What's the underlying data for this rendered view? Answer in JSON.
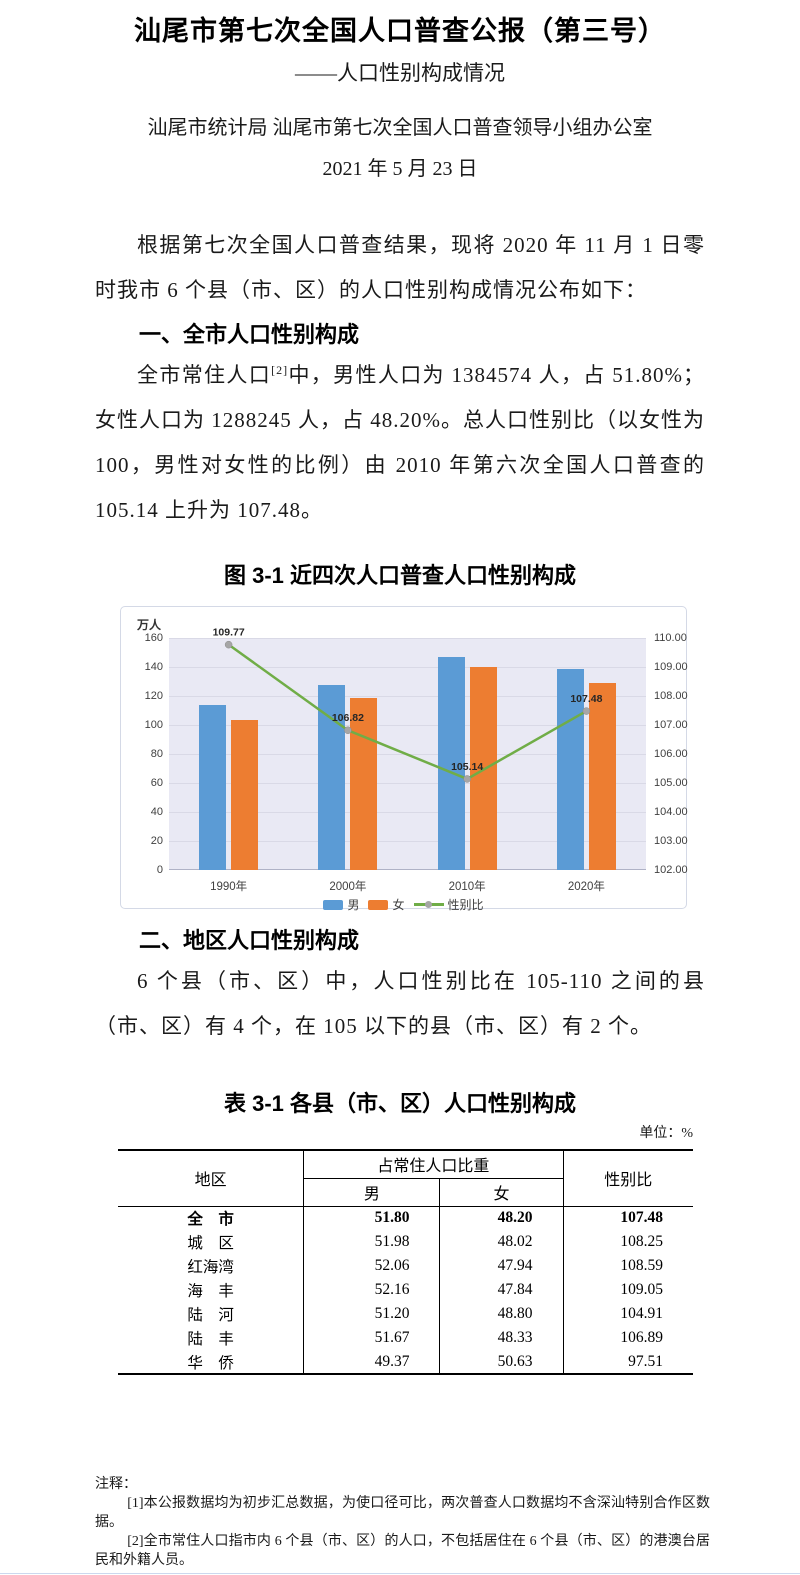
{
  "doc": {
    "title": "汕尾市第七次全国人口普查公报（第三号）",
    "subtitle": "——人口性别构成情况",
    "byline": "汕尾市统计局 汕尾市第七次全国人口普查领导小组办公室",
    "date": "2021 年 5 月 23 日",
    "intro": "根据第七次全国人口普查结果，现将 2020 年 11 月 1 日零时我市 6 个县（市、区）的人口性别构成情况公布如下：",
    "section1_heading": "一、全市人口性别构成",
    "para_sup_pre": "全市常住人口",
    "para_sup": "[2]",
    "para_sup_post": "中，男性人口为 1384574 人，占 51.80%；女性人口为 1288245 人，占 48.20%。总人口性别比（以女性为 100，男性对女性的比例）由 2010 年第六次全国人口普查的 105.14 上升为 107.48。",
    "section2_heading": "二、地区人口性别构成",
    "section2_para": "6 个县（市、区）中，人口性别比在 105-110 之间的县（市、区）有 4 个，在 105 以下的县（市、区）有 2 个。"
  },
  "chart_data": {
    "type": "bar",
    "title": "图 3-1  近四次人口普查人口性别构成",
    "unit_label": "万人",
    "categories": [
      "1990年",
      "2000年",
      "2010年",
      "2020年"
    ],
    "series": [
      {
        "name": "男",
        "type": "bar",
        "color": "#5B9BD5",
        "values": [
          113.8,
          127.5,
          146.9,
          138.5
        ]
      },
      {
        "name": "女",
        "type": "bar",
        "color": "#ED7D31",
        "values": [
          103.5,
          118.6,
          140.0,
          128.8
        ]
      },
      {
        "name": "性别比",
        "type": "line",
        "axis": "right",
        "color": "#70AD47",
        "marker_color": "#A6A6A6",
        "values": [
          109.77,
          106.82,
          105.14,
          107.48
        ],
        "labels": [
          "109.77",
          "106.82",
          "105.14",
          "107.48"
        ]
      }
    ],
    "left_axis": {
      "ticks": [
        160,
        140,
        120,
        100,
        80,
        60,
        40,
        20,
        0
      ],
      "min": 0,
      "max": 160
    },
    "right_axis": {
      "ticks": [
        "110.00",
        "109.00",
        "108.00",
        "107.00",
        "106.00",
        "105.00",
        "104.00",
        "103.00",
        "102.00"
      ],
      "min": 102,
      "max": 110
    },
    "legend_position": "bottom",
    "grid": true,
    "plot_bg": "#E9E9F4",
    "grid_color": "#D9D9E6",
    "axis_line_color": "#AFB2C6",
    "label_color": "#262626"
  },
  "table": {
    "title": "表 3-1  各县（市、区）人口性别构成",
    "unit": "单位：%",
    "header": {
      "area": "地区",
      "group": "占常住人口比重",
      "male": "男",
      "female": "女",
      "ratio": "性别比"
    },
    "rows": [
      {
        "area": "全　市",
        "male": "51.80",
        "female": "48.20",
        "ratio": "107.48",
        "bold": true
      },
      {
        "area": "城　区",
        "male": "51.98",
        "female": "48.02",
        "ratio": "108.25",
        "bold": false
      },
      {
        "area": "红海湾",
        "male": "52.06",
        "female": "47.94",
        "ratio": "108.59",
        "bold": false
      },
      {
        "area": "海　丰",
        "male": "52.16",
        "female": "47.84",
        "ratio": "109.05",
        "bold": false
      },
      {
        "area": "陆　河",
        "male": "51.20",
        "female": "48.80",
        "ratio": "104.91",
        "bold": false
      },
      {
        "area": "陆　丰",
        "male": "51.67",
        "female": "48.33",
        "ratio": "106.89",
        "bold": false
      },
      {
        "area": "华　侨",
        "male": "49.37",
        "female": "50.63",
        "ratio": "97.51",
        "bold": false
      }
    ]
  },
  "notes": {
    "heading": "注释：",
    "items": [
      "[1]本公报数据均为初步汇总数据，为使口径可比，两次普查人口数据均不含深汕特别合作区数据。",
      "[2]全市常住人口指市内 6 个县（市、区）的人口，不包括居住在 6 个县（市、区）的港澳台居民和外籍人员。"
    ]
  }
}
